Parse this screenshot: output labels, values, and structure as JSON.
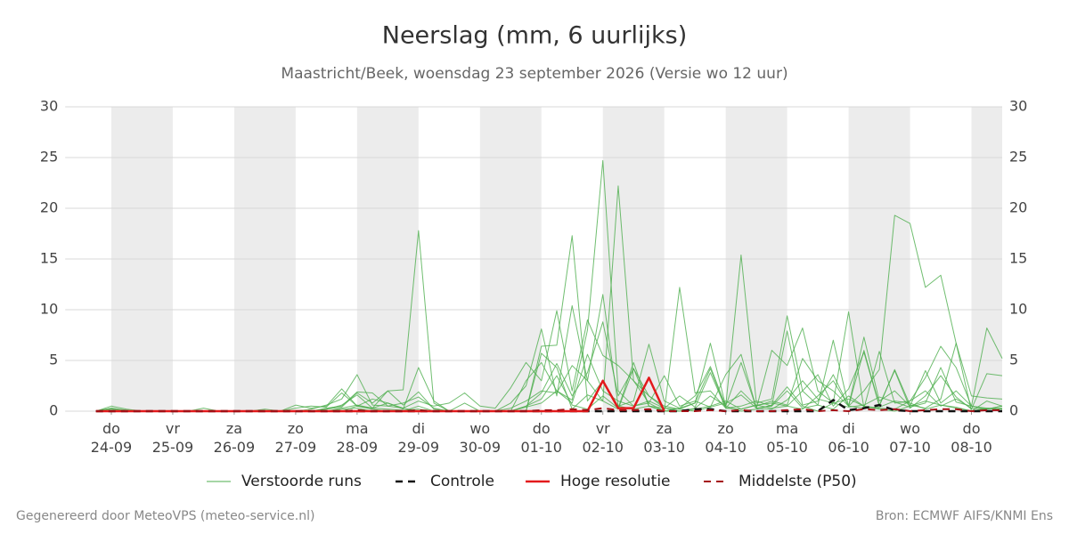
{
  "chart_data": {
    "type": "line",
    "title": "Neerslag (mm, 6 uurlijks)",
    "subtitle": "Maastricht/Beek, woensdag 23 september 2026 (Versie wo 12 uur)",
    "footer_left": "Gegenereerd door MeteoVPS (meteo-service.nl)",
    "footer_right": "Bron: ECMWF AIFS/KNMI Ens",
    "ylim": [
      0,
      30
    ],
    "yticks": [
      0,
      5,
      10,
      15,
      20,
      25,
      30
    ],
    "xlim": [
      -0.75,
      14.5
    ],
    "xticks": [
      {
        "value": 0,
        "label": "do 24-09"
      },
      {
        "value": 1,
        "label": "vr 25-09"
      },
      {
        "value": 2,
        "label": "za 26-09"
      },
      {
        "value": 3,
        "label": "zo 27-09"
      },
      {
        "value": 4,
        "label": "ma 28-09"
      },
      {
        "value": 5,
        "label": "di 29-09"
      },
      {
        "value": 6,
        "label": "wo 30-09"
      },
      {
        "value": 7,
        "label": "do 01-10"
      },
      {
        "value": 8,
        "label": "vr 02-10"
      },
      {
        "value": 9,
        "label": "za 03-10"
      },
      {
        "value": 10,
        "label": "zo 04-10"
      },
      {
        "value": 11,
        "label": "ma 05-10"
      },
      {
        "value": 12,
        "label": "di 06-10"
      },
      {
        "value": 13,
        "label": "wo 07-10"
      },
      {
        "value": 14,
        "label": "do 08-10"
      }
    ],
    "grid": true,
    "legend": "bottom",
    "x": [
      -0.25,
      0,
      0.25,
      0.5,
      0.75,
      1,
      1.25,
      1.5,
      1.75,
      2,
      2.25,
      2.5,
      2.75,
      3,
      3.25,
      3.5,
      3.75,
      4,
      4.25,
      4.5,
      4.75,
      5,
      5.25,
      5.5,
      5.75,
      6,
      6.25,
      6.5,
      6.75,
      7,
      7.25,
      7.5,
      7.75,
      8,
      8.25,
      8.5,
      8.75,
      9,
      9.25,
      9.5,
      9.75,
      10,
      10.25,
      10.5,
      10.75,
      11,
      11.25,
      11.5,
      11.75,
      12,
      12.25,
      12.5,
      12.75,
      13,
      13.25,
      13.5,
      13.75,
      14,
      14.25,
      14.5
    ],
    "series": [
      {
        "name": "Verstoorde runs",
        "color": "#4cae4c",
        "dash": false,
        "width": 1,
        "values": [
          [
            0,
            0.5,
            0.2,
            0,
            0,
            0,
            0,
            0,
            0,
            0,
            0,
            0,
            0,
            0.3,
            0.5,
            0.4,
            1.8,
            0.5,
            0.3,
            2.0,
            2.1,
            17.8,
            0.8,
            0,
            0,
            0,
            0,
            0,
            0.5,
            1.2,
            3.5,
            0.6,
            0.2,
            1.5,
            0.3,
            4.8,
            0.5,
            0,
            0,
            0.3,
            1.5,
            0.5,
            0,
            0.2,
            0.6,
            2.4,
            0.5,
            0,
            0.8,
            1.2,
            0.5,
            0.2,
            0,
            0.5,
            1.0,
            0.6,
            0.3,
            0,
            0.2,
            0.5
          ],
          [
            0,
            0.2,
            0,
            0,
            0,
            0,
            0,
            0.3,
            0,
            0,
            0,
            0,
            0,
            0,
            0.2,
            0.6,
            1.2,
            3.6,
            0.6,
            0.5,
            0.8,
            1.4,
            0.3,
            0,
            0,
            0,
            0,
            0,
            0.4,
            0.8,
            2.0,
            1.1,
            8.0,
            24.7,
            2.0,
            0.5,
            1.0,
            0.3,
            0,
            0.2,
            0.5,
            1.0,
            0.2,
            0.6,
            0.3,
            0.5,
            0.2,
            1.5,
            3.0,
            0.5,
            0.3,
            0.4,
            1.0,
            0.8,
            0.2,
            0.6,
            0.4,
            0,
            0.3,
            0.2
          ],
          [
            0,
            0.3,
            0,
            0,
            0,
            0,
            0,
            0,
            0,
            0,
            0,
            0,
            0,
            0,
            0,
            0.3,
            0.5,
            1.9,
            1.8,
            0.5,
            0.3,
            0,
            0,
            0,
            0.8,
            0,
            0,
            0.3,
            1.0,
            2.0,
            1.8,
            4.5,
            3.0,
            1.0,
            22.2,
            3.0,
            1.5,
            0.5,
            0.2,
            0,
            0.4,
            0.8,
            1.6,
            0.3,
            0.2,
            1.1,
            3.0,
            1.2,
            0.8,
            0.4,
            0.6,
            1.4,
            0.9,
            0.4,
            0.8,
            4.3,
            0.9,
            0.5,
            0.2,
            0.3
          ],
          [
            0,
            0,
            0,
            0,
            0,
            0,
            0,
            0,
            0,
            0,
            0,
            0,
            0,
            0,
            0,
            0.2,
            0.6,
            1.6,
            0.3,
            0.8,
            0.2,
            4.3,
            1.0,
            0,
            0,
            0,
            0,
            0,
            3.0,
            4.8,
            2.0,
            0.8,
            5.6,
            2.0,
            1.0,
            0.5,
            0.8,
            0,
            12.2,
            1.8,
            2.0,
            0.3,
            0.5,
            1.0,
            0.5,
            2.0,
            0.3,
            0.6,
            0.2,
            1.5,
            0.5,
            0.3,
            0.2,
            1.0,
            2.0,
            0.5,
            1.2,
            0.3,
            0.2,
            0.5
          ],
          [
            0,
            0,
            0,
            0,
            0,
            0,
            0,
            0,
            0,
            0,
            0,
            0,
            0,
            0,
            0,
            0,
            0.2,
            0.3,
            0,
            0,
            0,
            0.5,
            0,
            0,
            0,
            0,
            0,
            0,
            0,
            6.4,
            6.5,
            17.3,
            1.0,
            3.0,
            0.5,
            1.0,
            6.6,
            1.0,
            0.3,
            0.8,
            6.7,
            0.5,
            15.4,
            0.8,
            1.2,
            9.4,
            2.0,
            0.6,
            7.0,
            0.5,
            7.3,
            1.0,
            2.0,
            0.5,
            4.0,
            0.8,
            2.0,
            0.5,
            0.3,
            0.2
          ],
          [
            0,
            0.1,
            0,
            0,
            0,
            0,
            0,
            0,
            0,
            0,
            0,
            0,
            0,
            0,
            0,
            0,
            0,
            0.5,
            0.2,
            0,
            0,
            0,
            0,
            0,
            0,
            0,
            0,
            0.8,
            2.5,
            8.1,
            1.5,
            10.4,
            3.0,
            11.5,
            0.5,
            0.2,
            0.5,
            0,
            0.3,
            1.5,
            4.4,
            0.5,
            4.8,
            0.3,
            0.5,
            7.9,
            0.6,
            1.0,
            3.6,
            0.5,
            2.0,
            4.1,
            19.3,
            18.5,
            12.2,
            13.4,
            6.7,
            0,
            1.0,
            0.5
          ],
          [
            0,
            0,
            0,
            0,
            0,
            0,
            0,
            0,
            0,
            0,
            0,
            0.2,
            0,
            0.6,
            0.3,
            0.5,
            2.2,
            0.5,
            1.2,
            0.8,
            0.3,
            1.0,
            0.5,
            0.8,
            1.8,
            0.5,
            0.3,
            2.3,
            4.8,
            3.0,
            9.9,
            2.0,
            9.0,
            5.5,
            4.5,
            3.0,
            0.8,
            3.5,
            0.5,
            1.0,
            0.4,
            3.6,
            5.6,
            0.3,
            6.0,
            4.5,
            8.2,
            2.0,
            0.8,
            9.8,
            0.3,
            5.9,
            0.8,
            1.0,
            3.3,
            6.4,
            4.3,
            0.5,
            8.2,
            5.2
          ],
          [
            0,
            0.3,
            0.1,
            0,
            0,
            0,
            0,
            0,
            0,
            0,
            0,
            0,
            0,
            0,
            0,
            0.2,
            0.4,
            1.8,
            0.8,
            2.0,
            0.6,
            1.9,
            0.2,
            0,
            0,
            0,
            0,
            0,
            0.5,
            1.8,
            4.7,
            1.5,
            3.8,
            8.8,
            1.5,
            4.2,
            0.5,
            0.3,
            1.5,
            0.4,
            3.8,
            0.3,
            2.0,
            0.5,
            1.0,
            0.6,
            5.2,
            3.0,
            2.0,
            0.5,
            6.0,
            0.6,
            4.0,
            0.3,
            1.5,
            3.5,
            1.4,
            0.2,
            3.7,
            3.5
          ],
          [
            0,
            0,
            0,
            0,
            0,
            0,
            0,
            0,
            0,
            0,
            0,
            0,
            0,
            0,
            0,
            0,
            0.3,
            0.6,
            0.3,
            0.2,
            0.1,
            0.2,
            0,
            0,
            0,
            0,
            0,
            0,
            0,
            5.7,
            4.3,
            0.2,
            1.6,
            1.0,
            0.2,
            4.2,
            1.5,
            0.3,
            0.2,
            0.8,
            4.2,
            0.3,
            0.2,
            0.6,
            0.8,
            0.5,
            2.0,
            3.6,
            0.5,
            2.2,
            5.8,
            0.5,
            4.1,
            0.6,
            0.3,
            1.2,
            6.7,
            1.5,
            1.3,
            1.2
          ]
        ]
      },
      {
        "name": "Controle",
        "color": "#111111",
        "dash": true,
        "width": 2.5,
        "values": [
          0,
          0,
          0,
          0,
          0,
          0,
          0,
          0,
          0,
          0,
          0,
          0,
          0,
          0,
          0,
          0,
          0,
          0,
          0,
          0,
          0,
          0,
          0,
          0,
          0,
          0,
          0,
          0,
          0,
          0,
          0,
          0,
          0,
          0,
          0,
          0,
          0,
          0,
          0,
          0.2,
          0.2,
          0,
          0,
          0,
          0,
          0,
          0,
          0,
          1.1,
          0.1,
          0.3,
          0.6,
          0.1,
          0,
          0,
          0,
          0,
          0,
          0,
          0
        ]
      },
      {
        "name": "Hoge resolutie",
        "color": "#e31a1c",
        "dash": false,
        "width": 2.5,
        "values": [
          0,
          0,
          0,
          0,
          0,
          0,
          0,
          0,
          0,
          0,
          0,
          0,
          0,
          0,
          0,
          0,
          0,
          0,
          0,
          0,
          0,
          0,
          0,
          0,
          0,
          0,
          0,
          0,
          0,
          0,
          0,
          0,
          0,
          3.0,
          0.3,
          0.3,
          3.3,
          0,
          null,
          null,
          null,
          null,
          null,
          null,
          null,
          null,
          null,
          null,
          null,
          null,
          null,
          null,
          null,
          null,
          null,
          null,
          null,
          null,
          null,
          null
        ]
      },
      {
        "name": "Middelste (P50)",
        "color": "#a50f15",
        "dash": true,
        "width": 2,
        "values": [
          0,
          0,
          0,
          0,
          0,
          0,
          0,
          0,
          0,
          0,
          0,
          0,
          0,
          0,
          0,
          0,
          0,
          0.1,
          0,
          0,
          0,
          0.1,
          0,
          0,
          0,
          0,
          0,
          0,
          0,
          0.1,
          0.1,
          0.2,
          0.1,
          0.3,
          0.1,
          0.1,
          0.2,
          0,
          0,
          0,
          0.1,
          0,
          0.1,
          0,
          0,
          0.1,
          0.2,
          0,
          0.1,
          0,
          0.2,
          0.1,
          0.2,
          0,
          0.1,
          0.2,
          0.2,
          0,
          0.1,
          0.1
        ]
      }
    ]
  }
}
